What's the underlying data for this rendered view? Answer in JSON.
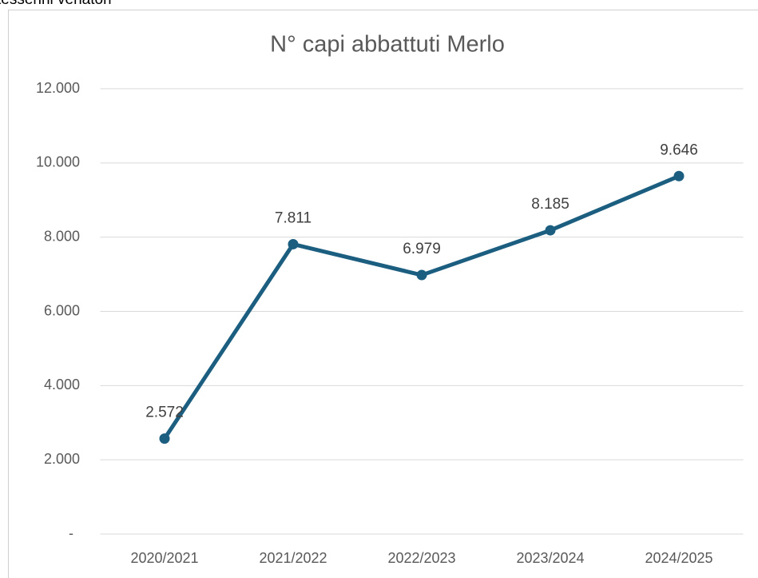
{
  "header_text": "tesserini venatori",
  "chart_data": {
    "type": "line",
    "title": "N° capi abbattuti Merlo",
    "categories": [
      "2020/2021",
      "2021/2022",
      "2022/2023",
      "2023/2024",
      "2024/2025"
    ],
    "series": [
      {
        "name": "Merlo",
        "color": "#1b5e80",
        "values": [
          2572,
          7811,
          6979,
          8185,
          9646
        ],
        "value_labels": [
          "2.572",
          "7.811",
          "6.979",
          "8.185",
          "9.646"
        ]
      }
    ],
    "ylim": [
      0,
      12000
    ],
    "yticks": [
      {
        "value": 0,
        "label": "-"
      },
      {
        "value": 2000,
        "label": "2.000"
      },
      {
        "value": 4000,
        "label": "4.000"
      },
      {
        "value": 6000,
        "label": "6.000"
      },
      {
        "value": 8000,
        "label": "8.000"
      },
      {
        "value": 10000,
        "label": "10.000"
      },
      {
        "value": 12000,
        "label": "12.000"
      }
    ],
    "grid": true
  }
}
